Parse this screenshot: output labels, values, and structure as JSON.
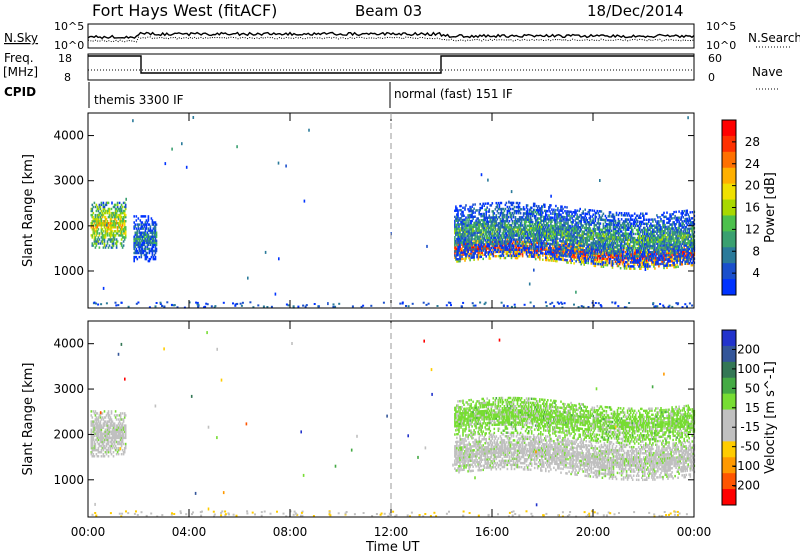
{
  "header": {
    "station": "Fort Hays West (fitACF)",
    "beam": "Beam 03",
    "date": "18/Dec/2014"
  },
  "noise_panel": {
    "left_label": "N.Sky",
    "right_label": "N.Search",
    "left_ticks": [
      "10^5",
      "10^0"
    ],
    "right_ticks": [
      "10^5",
      "10^0"
    ]
  },
  "freq_panel": {
    "left_label_line1": "Freq.",
    "left_label_line2": "[MHz]",
    "right_label": "Nave",
    "left_ticks": [
      "18",
      "8"
    ],
    "right_ticks": [
      "60",
      "0"
    ]
  },
  "cpid": {
    "label": "CPID",
    "segments": [
      {
        "name": "themis 3300 IF",
        "start_hour": 0
      },
      {
        "name": "normal (fast) 151 IF",
        "start_hour": 12
      }
    ]
  },
  "colors": {
    "power_scale": [
      "#0033ff",
      "#1a4fcc",
      "#2a7a9a",
      "#3aa070",
      "#4cc04c",
      "#a8d800",
      "#f0e000",
      "#ffb000",
      "#ff7000",
      "#ff3000",
      "#ff0000"
    ],
    "velocity_scale": [
      "#2233cc",
      "#335599",
      "#337755",
      "#44aa44",
      "#77dd33",
      "#c0c0c0",
      "#c0c0c0",
      "#ffcc00",
      "#ff9900",
      "#ff5500",
      "#ff0000"
    ],
    "ground_scatter": "#c0c0c0"
  },
  "chart_data": [
    {
      "type": "heatmap",
      "title": "Power",
      "ylabel": "Slant Range [km]",
      "xlabel": "Time UT",
      "xlim": [
        0,
        24
      ],
      "ylim": [
        180,
        4500
      ],
      "colorbar_label": "Power [dB]",
      "colorbar_ticks": [
        "28",
        "24",
        "20",
        "16",
        "12",
        "8",
        "4"
      ],
      "colorbar_range": [
        0,
        30
      ],
      "regions": [
        {
          "t_start": 0.1,
          "t_end": 1.5,
          "r_center": 2000,
          "r_width": 500,
          "value": 18
        },
        {
          "t_start": 1.8,
          "t_end": 2.7,
          "r_center": 1700,
          "r_width": 500,
          "value": 8
        },
        {
          "t_start": 14.5,
          "t_end": 24.0,
          "r_center": 1400,
          "r_width": 250,
          "value": 26
        },
        {
          "t_start": 14.5,
          "t_end": 24.0,
          "r_center": 1800,
          "r_width": 600,
          "value": 10
        }
      ]
    },
    {
      "type": "heatmap",
      "title": "Velocity",
      "ylabel": "Slant Range [km]",
      "xlabel": "Time UT",
      "xlim": [
        0,
        24
      ],
      "ylim": [
        180,
        4500
      ],
      "colorbar_label": "Velocity [m s^-1]",
      "colorbar_ticks": [
        "200",
        "100",
        "50",
        "15",
        "-15",
        "-50",
        "-100",
        "-200"
      ],
      "colorbar_range": [
        -250,
        250
      ],
      "regions": [
        {
          "t_start": 0.1,
          "t_end": 1.5,
          "r_center": 2000,
          "r_width": 500,
          "value": 0
        },
        {
          "t_start": 14.5,
          "t_end": 24.0,
          "r_center": 1500,
          "r_width": 400,
          "value": 0
        },
        {
          "t_start": 14.5,
          "t_end": 24.0,
          "r_center": 2300,
          "r_width": 400,
          "value": 40
        }
      ]
    }
  ],
  "xaxis": {
    "ticks": [
      "00:00",
      "04:00",
      "08:00",
      "12:00",
      "16:00",
      "20:00",
      "00:00"
    ],
    "tick_hours": [
      0,
      4,
      8,
      12,
      16,
      20,
      24
    ],
    "label": "Time UT"
  },
  "yaxis": {
    "ticks": [
      "4000",
      "3000",
      "2000",
      "1000"
    ],
    "tick_values": [
      4000,
      3000,
      2000,
      1000
    ],
    "label": "Slant Range [km]"
  }
}
